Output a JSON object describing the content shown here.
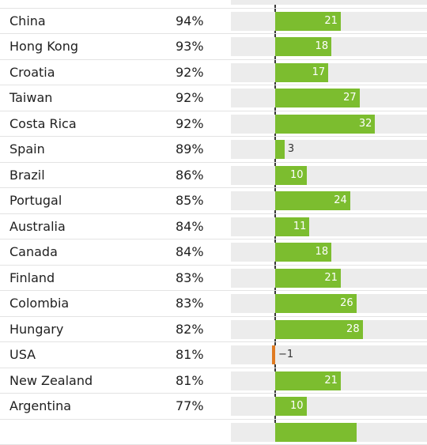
{
  "chart_data": {
    "type": "bar",
    "orientation": "horizontal",
    "columns": [
      "country",
      "percent",
      "value"
    ],
    "rows": [
      {
        "country": "",
        "percent": "",
        "value": null
      },
      {
        "country": "China",
        "percent": "94%",
        "value": 21
      },
      {
        "country": "Hong Kong",
        "percent": "93%",
        "value": 18
      },
      {
        "country": "Croatia",
        "percent": "92%",
        "value": 17
      },
      {
        "country": "Taiwan",
        "percent": "92%",
        "value": 27
      },
      {
        "country": "Costa Rica",
        "percent": "92%",
        "value": 32
      },
      {
        "country": "Spain",
        "percent": "89%",
        "value": 3
      },
      {
        "country": "Brazil",
        "percent": "86%",
        "value": 10
      },
      {
        "country": "Portugal",
        "percent": "85%",
        "value": 24
      },
      {
        "country": "Australia",
        "percent": "84%",
        "value": 11
      },
      {
        "country": "Canada",
        "percent": "84%",
        "value": 18
      },
      {
        "country": "Finland",
        "percent": "83%",
        "value": 21
      },
      {
        "country": "Colombia",
        "percent": "83%",
        "value": 26
      },
      {
        "country": "Hungary",
        "percent": "82%",
        "value": 28
      },
      {
        "country": "USA",
        "percent": "81%",
        "value": -1
      },
      {
        "country": "New Zealand",
        "percent": "81%",
        "value": 21
      },
      {
        "country": "Argentina",
        "percent": "77%",
        "value": 10
      },
      {
        "country": "",
        "percent": "",
        "value": 26
      }
    ],
    "value_labels": [
      "",
      "21",
      "18",
      "17",
      "27",
      "32",
      "3",
      "10",
      "24",
      "11",
      "18",
      "21",
      "26",
      "28",
      "−1",
      "21",
      "10",
      ""
    ],
    "colors": {
      "positive": "#7cbd2f",
      "negative": "#e07b22",
      "track": "#ececec",
      "axis": "#3a3a3a"
    },
    "xlim": [
      -1,
      35
    ]
  }
}
